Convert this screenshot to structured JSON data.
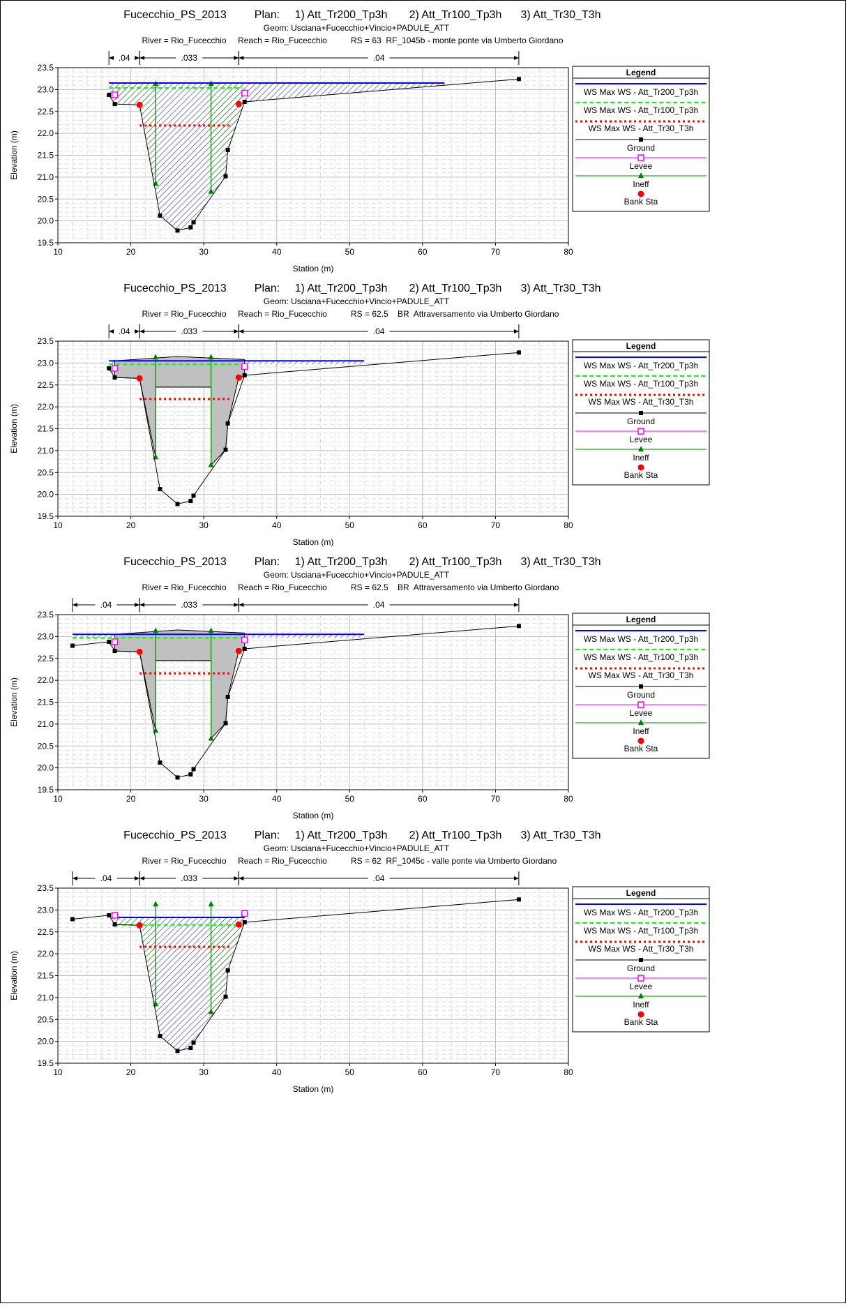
{
  "legend_title": "Legend",
  "chart_data": [
    {
      "type": "line",
      "title_project": "Fucecchio_PS_2013",
      "title_plan_label": "Plan:",
      "title_plans": [
        "1) Att_Tr200_Tp3h",
        "2) Att_Tr100_Tp3h",
        "3) Att_Tr30_T3h"
      ],
      "geom": "Geom: Usciana+Fucecchio+Vincio+PADULE_ATT",
      "river": "River = Rio_Fucecchio",
      "reach": "Reach = Rio_Fucecchio",
      "rs": "RS = 63  RF_1045b - monte ponte via Umberto Giordano",
      "xlabel": "Station (m)",
      "ylabel": "Elevation (m)",
      "xlim": [
        10,
        80
      ],
      "ylim": [
        19.5,
        23.5
      ],
      "xticks": [
        "10",
        "20",
        "30",
        "40",
        "50",
        "60",
        "70",
        "80"
      ],
      "yticks": [
        "19.5",
        "20.0",
        "20.5",
        "21.0",
        "21.5",
        "22.0",
        "22.5",
        "23.0",
        "23.5"
      ],
      "manning": [
        {
          "label": ".04",
          "from": 17.0,
          "to": 21.2
        },
        {
          "label": ".033",
          "from": 21.2,
          "to": 34.8
        },
        {
          "label": ".04",
          "from": 34.8,
          "to": 73.2
        }
      ],
      "ground": [
        [
          17,
          22.88
        ],
        [
          17.8,
          22.67
        ],
        [
          21.2,
          22.65
        ],
        [
          24,
          20.12
        ],
        [
          26.4,
          19.78
        ],
        [
          28.2,
          19.85
        ],
        [
          28.6,
          19.97
        ],
        [
          33,
          21.02
        ],
        [
          33.3,
          21.62
        ],
        [
          35.6,
          22.72
        ],
        [
          73.2,
          23.24
        ]
      ],
      "levees": [
        [
          17.8,
          22.88
        ],
        [
          35.6,
          22.92
        ]
      ],
      "bank_sta": [
        [
          21.2,
          22.65
        ],
        [
          34.8,
          22.67
        ]
      ],
      "ineff": [
        {
          "x": 23.4,
          "bottom": 20.85,
          "top": 23.13
        },
        {
          "x": 31,
          "bottom": 20.67,
          "top": 23.13
        }
      ],
      "series": [
        {
          "name": "WS Max WS - Att_Tr200_Tp3h",
          "start": 17,
          "end": 63.0,
          "y": 23.15,
          "color": "#0000ff"
        },
        {
          "name": "WS Max WS - Att_Tr100_Tp3h",
          "start": 17,
          "end": 35.3,
          "y": 23.04,
          "color": "#00ff00"
        },
        {
          "name": "WS Max WS - Att_Tr30_T3h",
          "start": 21.2,
          "end": 33.5,
          "y": 22.18,
          "color": "#ff0000"
        }
      ],
      "bridge": null,
      "legend_items": [
        "WS Max WS - Att_Tr200_Tp3h",
        "WS Max WS - Att_Tr100_Tp3h",
        "WS Max WS - Att_Tr30_T3h",
        "Ground",
        "Levee",
        "Ineff",
        "Bank Sta"
      ],
      "grid": true,
      "legend_position": "right"
    },
    {
      "type": "line",
      "title_project": "Fucecchio_PS_2013",
      "title_plan_label": "Plan:",
      "title_plans": [
        "1) Att_Tr200_Tp3h",
        "2) Att_Tr100_Tp3h",
        "3) Att_Tr30_T3h"
      ],
      "geom": "Geom: Usciana+Fucecchio+Vincio+PADULE_ATT",
      "river": "River = Rio_Fucecchio",
      "reach": "Reach = Rio_Fucecchio",
      "rs": "RS = 62.5    BR  Attraversamento via Umberto Giordano",
      "xlabel": "Station (m)",
      "ylabel": "Elevation (m)",
      "xlim": [
        10,
        80
      ],
      "ylim": [
        19.5,
        23.5
      ],
      "xticks": [
        "10",
        "20",
        "30",
        "40",
        "50",
        "60",
        "70",
        "80"
      ],
      "yticks": [
        "19.5",
        "20.0",
        "20.5",
        "21.0",
        "21.5",
        "22.0",
        "22.5",
        "23.0",
        "23.5"
      ],
      "manning": [
        {
          "label": ".04",
          "from": 17.0,
          "to": 21.2
        },
        {
          "label": ".033",
          "from": 21.2,
          "to": 34.8
        },
        {
          "label": ".04",
          "from": 34.8,
          "to": 73.2
        }
      ],
      "ground": [
        [
          17,
          22.88
        ],
        [
          17.8,
          22.67
        ],
        [
          21.2,
          22.65
        ],
        [
          24,
          20.12
        ],
        [
          26.4,
          19.78
        ],
        [
          28.2,
          19.85
        ],
        [
          28.6,
          19.97
        ],
        [
          33,
          21.02
        ],
        [
          33.3,
          21.62
        ],
        [
          35.6,
          22.72
        ],
        [
          73.2,
          23.24
        ]
      ],
      "levees": [
        [
          17.8,
          22.88
        ],
        [
          35.6,
          22.92
        ]
      ],
      "bank_sta": [
        [
          21.2,
          22.65
        ],
        [
          34.8,
          22.67
        ]
      ],
      "ineff": [
        {
          "x": 23.4,
          "bottom": 20.85,
          "top": 23.13
        },
        {
          "x": 31,
          "bottom": 20.67,
          "top": 23.13
        }
      ],
      "series": [
        {
          "name": "WS Max WS - Att_Tr200_Tp3h",
          "start": 17,
          "end": 52.0,
          "y": 23.05,
          "color": "#0000ff"
        },
        {
          "name": "WS Max WS - Att_Tr100_Tp3h",
          "start": 17,
          "end": 35.3,
          "y": 22.97,
          "color": "#00ff00"
        },
        {
          "name": "WS Max WS - Att_Tr30_T3h",
          "start": 21.2,
          "end": 33.5,
          "y": 22.18,
          "color": "#ff0000"
        }
      ],
      "bridge": {
        "from": 17.8,
        "to": 35.6,
        "low_chord": 22.45,
        "deck": [
          [
            17.8,
            23.05
          ],
          [
            26.4,
            23.15
          ],
          [
            35.6,
            23.08
          ]
        ]
      },
      "legend_items": [
        "WS Max WS - Att_Tr200_Tp3h",
        "WS Max WS - Att_Tr100_Tp3h",
        "WS Max WS - Att_Tr30_T3h",
        "Ground",
        "Levee",
        "Ineff",
        "Bank Sta"
      ],
      "grid": true,
      "legend_position": "right"
    },
    {
      "type": "line",
      "title_project": "Fucecchio_PS_2013",
      "title_plan_label": "Plan:",
      "title_plans": [
        "1) Att_Tr200_Tp3h",
        "2) Att_Tr100_Tp3h",
        "3) Att_Tr30_T3h"
      ],
      "geom": "Geom: Usciana+Fucecchio+Vincio+PADULE_ATT",
      "river": "River = Rio_Fucecchio",
      "reach": "Reach = Rio_Fucecchio",
      "rs": "RS = 62.5    BR  Attraversamento via Umberto Giordano",
      "xlabel": "Station (m)",
      "ylabel": "Elevation (m)",
      "xlim": [
        10,
        80
      ],
      "ylim": [
        19.5,
        23.5
      ],
      "xticks": [
        "10",
        "20",
        "30",
        "40",
        "50",
        "60",
        "70",
        "80"
      ],
      "yticks": [
        "19.5",
        "20.0",
        "20.5",
        "21.0",
        "21.5",
        "22.0",
        "22.5",
        "23.0",
        "23.5"
      ],
      "manning": [
        {
          "label": ".04",
          "from": 12.0,
          "to": 21.2
        },
        {
          "label": ".033",
          "from": 21.2,
          "to": 34.8
        },
        {
          "label": ".04",
          "from": 34.8,
          "to": 73.2
        }
      ],
      "ground": [
        [
          12,
          22.79
        ],
        [
          17,
          22.88
        ],
        [
          17.8,
          22.67
        ],
        [
          21.2,
          22.65
        ],
        [
          24,
          20.12
        ],
        [
          26.4,
          19.78
        ],
        [
          28.2,
          19.85
        ],
        [
          28.6,
          19.97
        ],
        [
          33,
          21.02
        ],
        [
          33.3,
          21.62
        ],
        [
          35.6,
          22.72
        ],
        [
          73.2,
          23.24
        ]
      ],
      "levees": [
        [
          17.8,
          22.88
        ],
        [
          35.6,
          22.92
        ]
      ],
      "bank_sta": [
        [
          21.2,
          22.65
        ],
        [
          34.8,
          22.67
        ]
      ],
      "ineff": [
        {
          "x": 23.4,
          "bottom": 20.85,
          "top": 23.13
        },
        {
          "x": 31,
          "bottom": 20.67,
          "top": 23.13
        }
      ],
      "series": [
        {
          "name": "WS Max WS - Att_Tr200_Tp3h",
          "start": 12,
          "end": 52.0,
          "y": 23.05,
          "color": "#0000ff"
        },
        {
          "name": "WS Max WS - Att_Tr100_Tp3h",
          "start": 12,
          "end": 35.3,
          "y": 22.97,
          "color": "#00ff00"
        },
        {
          "name": "WS Max WS - Att_Tr30_T3h",
          "start": 21.2,
          "end": 33.5,
          "y": 22.16,
          "color": "#ff0000"
        }
      ],
      "bridge": {
        "from": 17.8,
        "to": 35.6,
        "low_chord": 22.45,
        "deck": [
          [
            17.8,
            23.05
          ],
          [
            26.4,
            23.15
          ],
          [
            35.6,
            23.08
          ]
        ]
      },
      "legend_items": [
        "WS Max WS - Att_Tr200_Tp3h",
        "WS Max WS - Att_Tr100_Tp3h",
        "WS Max WS - Att_Tr30_T3h",
        "Ground",
        "Levee",
        "Ineff",
        "Bank Sta"
      ],
      "grid": true,
      "legend_position": "right"
    },
    {
      "type": "line",
      "title_project": "Fucecchio_PS_2013",
      "title_plan_label": "Plan:",
      "title_plans": [
        "1) Att_Tr200_Tp3h",
        "2) Att_Tr100_Tp3h",
        "3) Att_Tr30_T3h"
      ],
      "geom": "Geom: Usciana+Fucecchio+Vincio+PADULE_ATT",
      "river": "River = Rio_Fucecchio",
      "reach": "Reach = Rio_Fucecchio",
      "rs": "RS = 62  RF_1045c - valle ponte via Umberto Giordano",
      "xlabel": "Station (m)",
      "ylabel": "Elevation (m)",
      "xlim": [
        10,
        80
      ],
      "ylim": [
        19.5,
        23.5
      ],
      "xticks": [
        "10",
        "20",
        "30",
        "40",
        "50",
        "60",
        "70",
        "80"
      ],
      "yticks": [
        "19.5",
        "20.0",
        "20.5",
        "21.0",
        "21.5",
        "22.0",
        "22.5",
        "23.0",
        "23.5"
      ],
      "manning": [
        {
          "label": ".04",
          "from": 12.0,
          "to": 21.2
        },
        {
          "label": ".033",
          "from": 21.2,
          "to": 34.8
        },
        {
          "label": ".04",
          "from": 34.8,
          "to": 73.2
        }
      ],
      "ground": [
        [
          12,
          22.79
        ],
        [
          17,
          22.88
        ],
        [
          17.8,
          22.67
        ],
        [
          21.2,
          22.65
        ],
        [
          24,
          20.12
        ],
        [
          26.4,
          19.78
        ],
        [
          28.2,
          19.85
        ],
        [
          28.6,
          19.97
        ],
        [
          33,
          21.02
        ],
        [
          33.3,
          21.62
        ],
        [
          35.6,
          22.72
        ],
        [
          73.2,
          23.24
        ]
      ],
      "levees": [
        [
          17.8,
          22.88
        ],
        [
          35.6,
          22.92
        ]
      ],
      "bank_sta": [
        [
          21.2,
          22.65
        ],
        [
          34.8,
          22.67
        ]
      ],
      "ineff": [
        {
          "x": 23.4,
          "bottom": 20.85,
          "top": 23.13
        },
        {
          "x": 31,
          "bottom": 20.67,
          "top": 23.13
        }
      ],
      "series": [
        {
          "name": "WS Max WS - Att_Tr200_Tp3h",
          "start": 17.8,
          "end": 35.6,
          "y": 22.83,
          "color": "#0000ff"
        },
        {
          "name": "WS Max WS - Att_Tr100_Tp3h",
          "start": 17.8,
          "end": 35.2,
          "y": 22.66,
          "color": "#00ff00"
        },
        {
          "name": "WS Max WS - Att_Tr30_T3h",
          "start": 21.2,
          "end": 33.5,
          "y": 22.16,
          "color": "#ff0000"
        }
      ],
      "bridge": null,
      "legend_items": [
        "WS Max WS - Att_Tr200_Tp3h",
        "WS Max WS - Att_Tr100_Tp3h",
        "WS Max WS - Att_Tr30_T3h",
        "Ground",
        "Levee",
        "Ineff",
        "Bank Sta"
      ],
      "grid": true,
      "legend_position": "right"
    }
  ]
}
